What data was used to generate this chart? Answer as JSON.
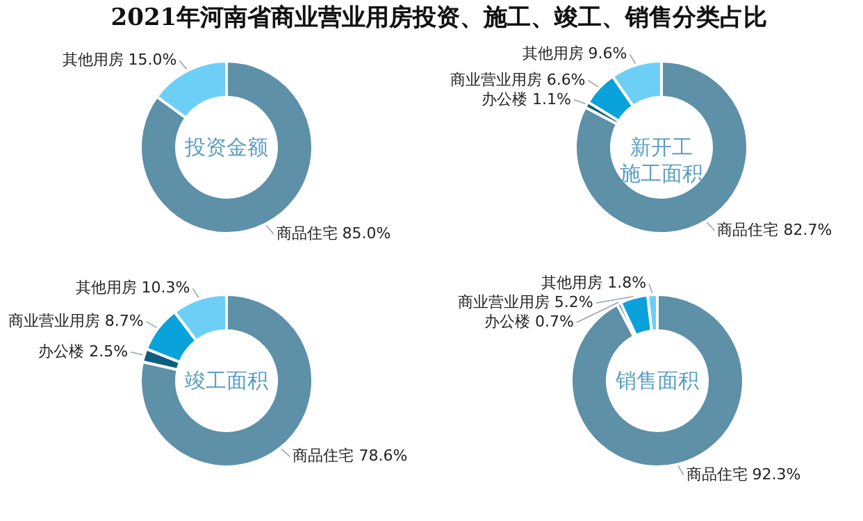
{
  "chart_data": [
    {
      "type": "donut",
      "title": "投资金额",
      "annotations": [
        "2021年河南省商业营业用房投资、施工、竣工、销售分类占比"
      ],
      "categories": [
        "商品住宅",
        "其他用房"
      ],
      "values": [
        85.0,
        15.0
      ],
      "value_labels": [
        "85.0%",
        "15.0%"
      ],
      "colors": [
        "#5e90a8",
        "#6dcff6"
      ]
    },
    {
      "type": "donut",
      "title": "新开工施工面积",
      "categories": [
        "商品住宅",
        "办公楼",
        "商业营业用房",
        "其他用房"
      ],
      "values": [
        82.7,
        1.1,
        6.6,
        9.6
      ],
      "value_labels": [
        "82.7%",
        "1.1%",
        "6.6%",
        "9.6%"
      ],
      "colors": [
        "#5e90a8",
        "#0d5f80",
        "#0aa2da",
        "#6dcff6"
      ]
    },
    {
      "type": "donut",
      "title": "竣工面积",
      "categories": [
        "商品住宅",
        "办公楼",
        "商业营业用房",
        "其他用房"
      ],
      "values": [
        78.6,
        2.5,
        8.7,
        10.3
      ],
      "value_labels": [
        "78.6%",
        "2.5%",
        "8.7%",
        "10.3%"
      ],
      "colors": [
        "#5e90a8",
        "#0d5f80",
        "#0aa2da",
        "#6dcff6"
      ]
    },
    {
      "type": "donut",
      "title": "销售面积",
      "categories": [
        "商品住宅",
        "办公楼",
        "商业营业用房",
        "其他用房"
      ],
      "values": [
        92.3,
        0.7,
        5.2,
        1.8
      ],
      "value_labels": [
        "92.3%",
        "0.7%",
        "5.2%",
        "1.8%"
      ],
      "colors": [
        "#5e90a8",
        "#0d5f80",
        "#0aa2da",
        "#6dcff6"
      ]
    }
  ]
}
